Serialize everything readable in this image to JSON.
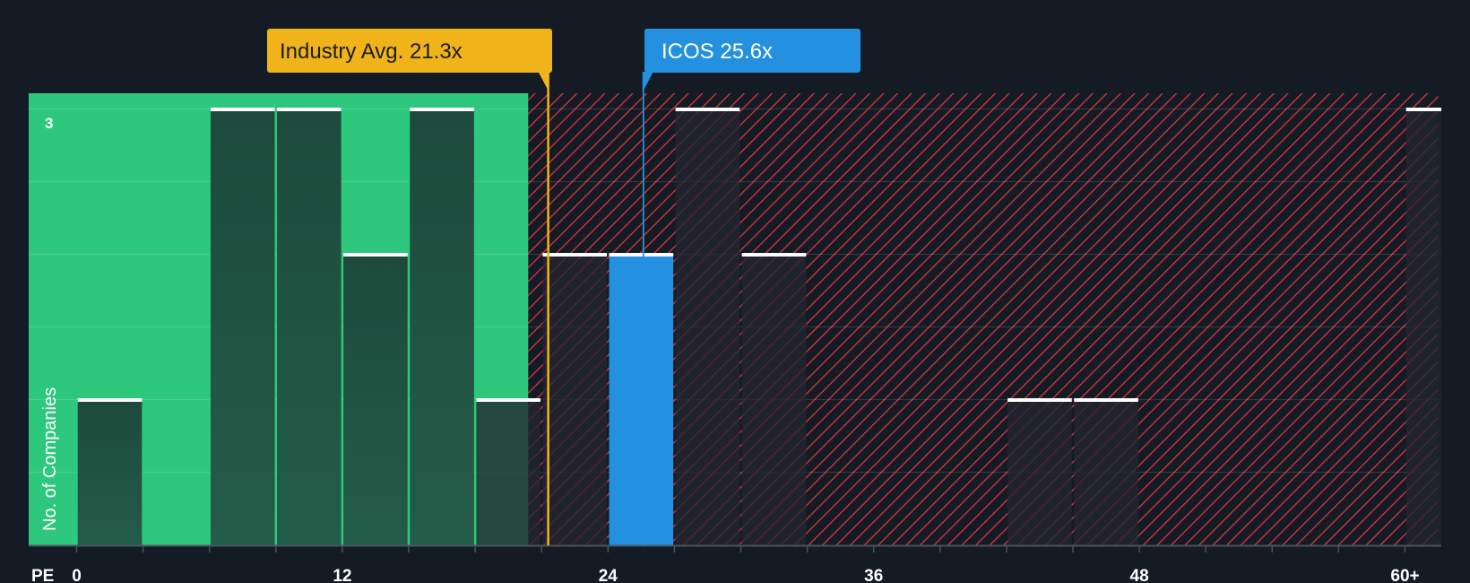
{
  "chart_data": {
    "type": "bar",
    "title": "",
    "xlabel": "PE",
    "ylabel": "No. of Companies",
    "x_ticks": [
      "0",
      "12",
      "24",
      "36",
      "48",
      "60+"
    ],
    "x_tick_values": [
      0,
      12,
      24,
      36,
      48,
      60
    ],
    "xlim": [
      -2.2,
      61.5
    ],
    "ylim": [
      0,
      3
    ],
    "y_tick_label": "3",
    "bin_width": 3,
    "bins": [
      {
        "start": 0,
        "count": 1
      },
      {
        "start": 3,
        "count": 0
      },
      {
        "start": 6,
        "count": 3
      },
      {
        "start": 9,
        "count": 3
      },
      {
        "start": 12,
        "count": 2
      },
      {
        "start": 15,
        "count": 3
      },
      {
        "start": 18,
        "count": 1
      },
      {
        "start": 21,
        "count": 2
      },
      {
        "start": 24,
        "count": 2,
        "highlight": true
      },
      {
        "start": 27,
        "count": 3
      },
      {
        "start": 30,
        "count": 2
      },
      {
        "start": 33,
        "count": 0
      },
      {
        "start": 36,
        "count": 0
      },
      {
        "start": 39,
        "count": 0
      },
      {
        "start": 42,
        "count": 1
      },
      {
        "start": 45,
        "count": 1
      },
      {
        "start": 48,
        "count": 0
      },
      {
        "start": 51,
        "count": 0
      },
      {
        "start": 54,
        "count": 0
      },
      {
        "start": 57,
        "count": 0
      },
      {
        "start": 60,
        "count": 3
      }
    ],
    "annotations": [
      {
        "name": "industry-avg",
        "label": "Industry Avg. 21.3x",
        "value": 21.3,
        "color": "#f0b41a",
        "text_color": "#1a1a1a"
      },
      {
        "name": "company",
        "label": "ICOS 25.6x",
        "value": 25.6,
        "color": "#2391e0",
        "text_color": "#ffffff"
      }
    ],
    "regions": [
      {
        "name": "fair-value-region",
        "from": -2.2,
        "to": 20.4,
        "color": "#2dc87d"
      },
      {
        "name": "overvalued-region",
        "from": 20.4,
        "to": 61.5,
        "color": "#d9363e"
      }
    ],
    "colors": {
      "background": "#151b24",
      "bar_dark": "#1d4a3c",
      "bar_hatched": "#232530",
      "bar_highlight": "#2391e0",
      "bar_cap": "#ffffff",
      "axis": "#4a5260"
    }
  }
}
